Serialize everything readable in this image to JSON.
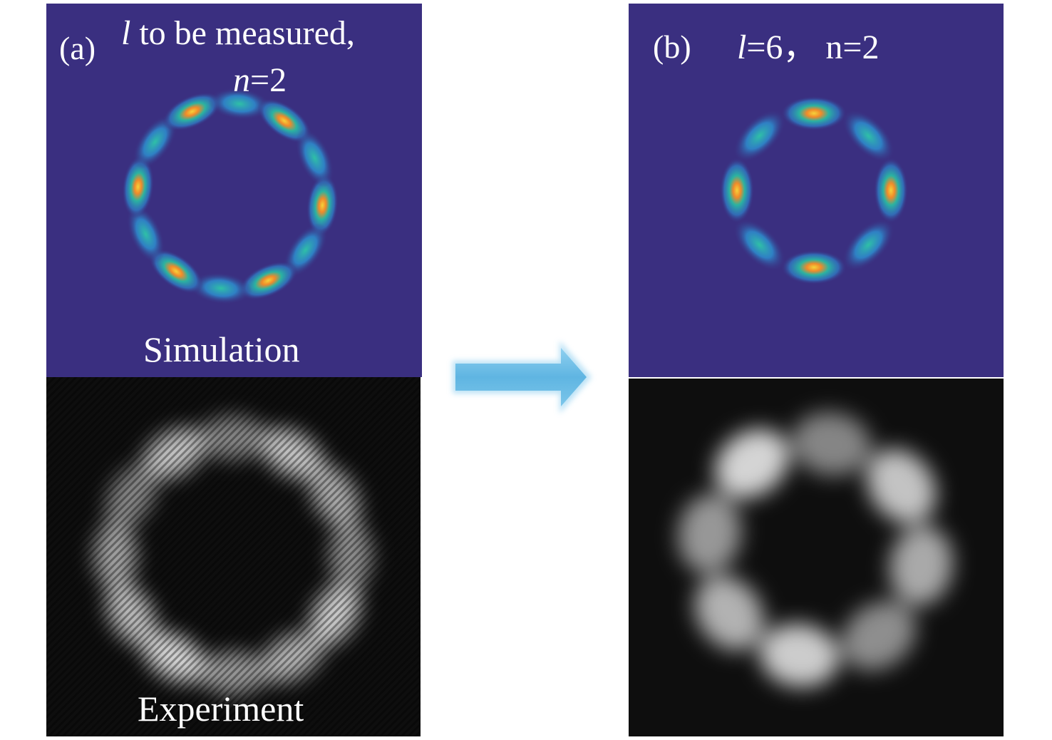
{
  "panel_a": {
    "label": "(a)",
    "title_l": "l",
    "title_rest": " to be measured,",
    "title_n": "n",
    "title_n_rest": "=2",
    "sim_caption": "Simulation",
    "exp_caption": "Experiment",
    "petal_count": 12
  },
  "panel_b": {
    "label": "(b)",
    "title_l": "l",
    "title_rest": "=6， n=2",
    "petal_count": 8
  },
  "colors": {
    "sim_background": "#3a2f80",
    "exp_background": "#0e0e0e",
    "arrow": "#5fb5e2"
  },
  "arrow": {
    "direction": "right"
  }
}
